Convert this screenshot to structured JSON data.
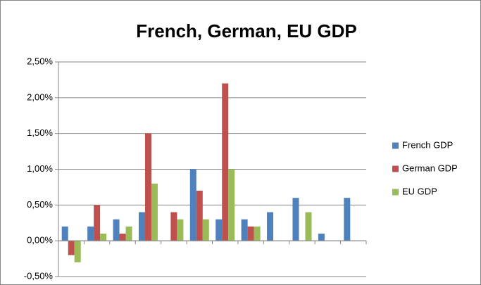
{
  "chart_data": {
    "type": "bar",
    "title": "French, German, EU GDP",
    "categories": [
      null,
      null,
      null,
      null,
      null,
      null,
      null,
      null,
      null,
      null,
      null,
      null
    ],
    "series": [
      {
        "name": "French GDP",
        "color": "#4f81bd",
        "values": [
          0.2,
          0.2,
          0.3,
          0.4,
          null,
          1.0,
          0.3,
          0.3,
          0.4,
          0.6,
          0.1,
          0.6
        ]
      },
      {
        "name": "German GDP",
        "color": "#c0504d",
        "values": [
          -0.2,
          0.5,
          0.1,
          1.5,
          0.4,
          0.7,
          2.2,
          0.2,
          null,
          null,
          null,
          null
        ]
      },
      {
        "name": "EU GDP",
        "color": "#9bbb59",
        "values": [
          -0.3,
          0.1,
          0.2,
          0.8,
          0.3,
          0.3,
          1.0,
          0.2,
          null,
          0.4,
          null,
          null
        ]
      }
    ],
    "ylim": [
      -0.5,
      2.5
    ],
    "yticks": [
      {
        "value": -0.5,
        "label": "-0,50%"
      },
      {
        "value": 0,
        "label": "0,00%"
      },
      {
        "value": 0.5,
        "label": "0,50%"
      },
      {
        "value": 1.0,
        "label": "1,00%"
      },
      {
        "value": 1.5,
        "label": "1,50%"
      },
      {
        "value": 2.0,
        "label": "2,00%"
      },
      {
        "value": 2.5,
        "label": "2,50%"
      }
    ],
    "grid": true,
    "legend": "right"
  }
}
